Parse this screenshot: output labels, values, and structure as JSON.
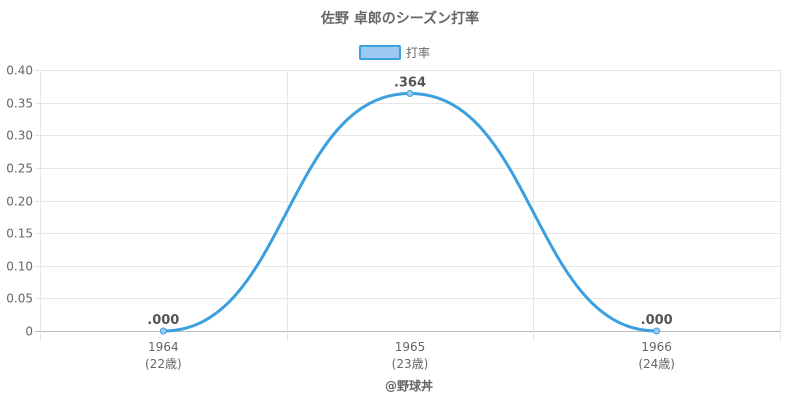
{
  "chart_data": {
    "type": "line",
    "title": "佐野 卓郎のシーズン打率",
    "x": [
      "1964",
      "1965",
      "1966"
    ],
    "x_sublabels": [
      "(22歳)",
      "(23歳)",
      "(24歳)"
    ],
    "series": [
      {
        "name": "打率",
        "values": [
          0.0,
          0.364,
          0.0
        ],
        "data_labels": [
          ".000",
          ".364",
          ".000"
        ],
        "color": "#3ca0e0",
        "fill": "#9ccaf0"
      }
    ],
    "ylim": [
      0,
      0.4
    ],
    "yticks": [
      0,
      0.05,
      0.1,
      0.15,
      0.2,
      0.25,
      0.3,
      0.35,
      0.4
    ],
    "ytick_labels": [
      "0",
      "0.05",
      "0.10",
      "0.15",
      "0.20",
      "0.25",
      "0.30",
      "0.35",
      "0.40"
    ],
    "grid": true,
    "legend_position": "top-center",
    "footer": "@野球丼"
  }
}
